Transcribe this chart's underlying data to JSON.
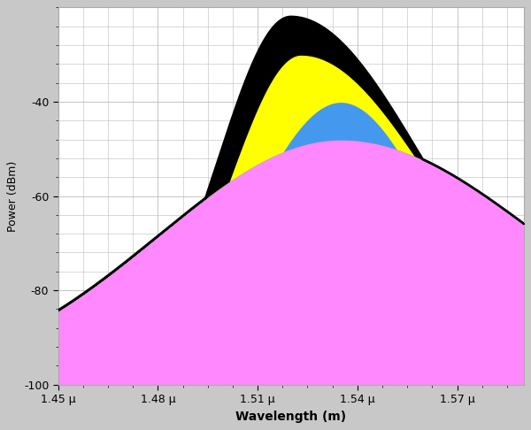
{
  "xlabel": "Wavelength (m)",
  "ylabel": "Power (dBm)",
  "xlim": [
    1.45e-06,
    1.59e-06
  ],
  "ylim": [
    -100,
    -20
  ],
  "yticks": [
    -100,
    -80,
    -60,
    -40
  ],
  "xticks": [
    1.45e-06,
    1.48e-06,
    1.51e-06,
    1.54e-06,
    1.57e-06
  ],
  "xtick_labels": [
    "1.45 μ",
    "1.48 μ",
    "1.51 μ",
    "1.54 μ",
    "1.57 μ"
  ],
  "plot_bg_color": "#ffffff",
  "outer_bg_color": "#c8c8c8",
  "grid_color": "#bbbbbb",
  "pink_color": "#ff88ff",
  "blue_color": "#4499ee",
  "yellow_color": "#ffff00",
  "black_color": "#000000",
  "figsize": [
    6.0,
    4.86
  ],
  "dpi": 100
}
